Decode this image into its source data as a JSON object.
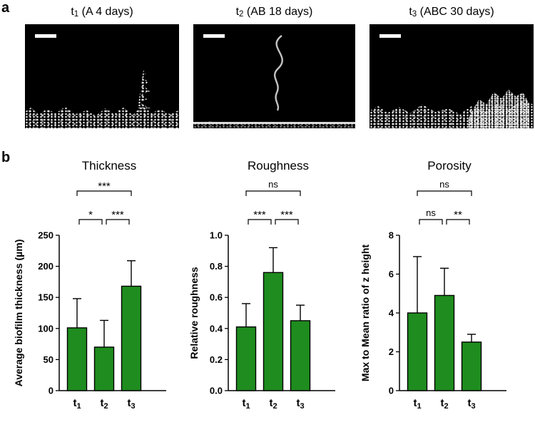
{
  "figure": {
    "panel_a": {
      "label": "a",
      "micrographs": [
        {
          "title_base": "t",
          "title_sub": "1",
          "title_rest": " (A 4 days)"
        },
        {
          "title_base": "t",
          "title_sub": "2",
          "title_rest": " (AB 18 days)"
        },
        {
          "title_base": "t",
          "title_sub": "3",
          "title_rest": " (ABC 30 days)"
        }
      ]
    },
    "panel_b": {
      "label": "b"
    }
  },
  "colors": {
    "bar": "#1e8c1e",
    "axis": "#000000"
  },
  "chart_data": [
    {
      "type": "bar",
      "title": "Thickness",
      "ylabel": "Average biofilm thickness (µm)",
      "ylim": [
        0,
        250
      ],
      "yticks": [
        0,
        50,
        100,
        150,
        200,
        250
      ],
      "ytick_labels": [
        "0",
        "50",
        "100",
        "150",
        "200",
        "250"
      ],
      "categories": [
        {
          "base": "t",
          "sub": "1"
        },
        {
          "base": "t",
          "sub": "2"
        },
        {
          "base": "t",
          "sub": "3"
        }
      ],
      "values": [
        101,
        70,
        168
      ],
      "errors": [
        47,
        43,
        41
      ],
      "significance": [
        {
          "pair": [
            0,
            1
          ],
          "label": "*",
          "level": 0
        },
        {
          "pair": [
            1,
            2
          ],
          "label": "***",
          "level": 0
        },
        {
          "pair": [
            0,
            2
          ],
          "label": "***",
          "level": 1
        }
      ]
    },
    {
      "type": "bar",
      "title": "Roughness",
      "ylabel": "Relative roughness",
      "ylim": [
        0,
        1.0
      ],
      "yticks": [
        0,
        0.2,
        0.4,
        0.6,
        0.8,
        1.0
      ],
      "ytick_labels": [
        "0.0",
        "0.2",
        "0.4",
        "0.6",
        "0.8",
        "1.0"
      ],
      "categories": [
        {
          "base": "t",
          "sub": "1"
        },
        {
          "base": "t",
          "sub": "2"
        },
        {
          "base": "t",
          "sub": "3"
        }
      ],
      "values": [
        0.41,
        0.76,
        0.45
      ],
      "errors": [
        0.15,
        0.16,
        0.1
      ],
      "significance": [
        {
          "pair": [
            0,
            1
          ],
          "label": "***",
          "level": 0
        },
        {
          "pair": [
            1,
            2
          ],
          "label": "***",
          "level": 0
        },
        {
          "pair": [
            0,
            2
          ],
          "label": "ns",
          "level": 1
        }
      ]
    },
    {
      "type": "bar",
      "title": "Porosity",
      "ylabel": "Max to Mean ratio of z height",
      "ylim": [
        0,
        8
      ],
      "yticks": [
        0,
        2,
        4,
        6,
        8
      ],
      "ytick_labels": [
        "0",
        "2",
        "4",
        "6",
        "8"
      ],
      "categories": [
        {
          "base": "t",
          "sub": "1"
        },
        {
          "base": "t",
          "sub": "2"
        },
        {
          "base": "t",
          "sub": "3"
        }
      ],
      "values": [
        4.0,
        4.9,
        2.5
      ],
      "errors": [
        2.9,
        1.4,
        0.4
      ],
      "significance": [
        {
          "pair": [
            0,
            1
          ],
          "label": "ns",
          "level": 0
        },
        {
          "pair": [
            1,
            2
          ],
          "label": "**",
          "level": 0
        },
        {
          "pair": [
            0,
            2
          ],
          "label": "ns",
          "level": 1
        }
      ]
    }
  ]
}
